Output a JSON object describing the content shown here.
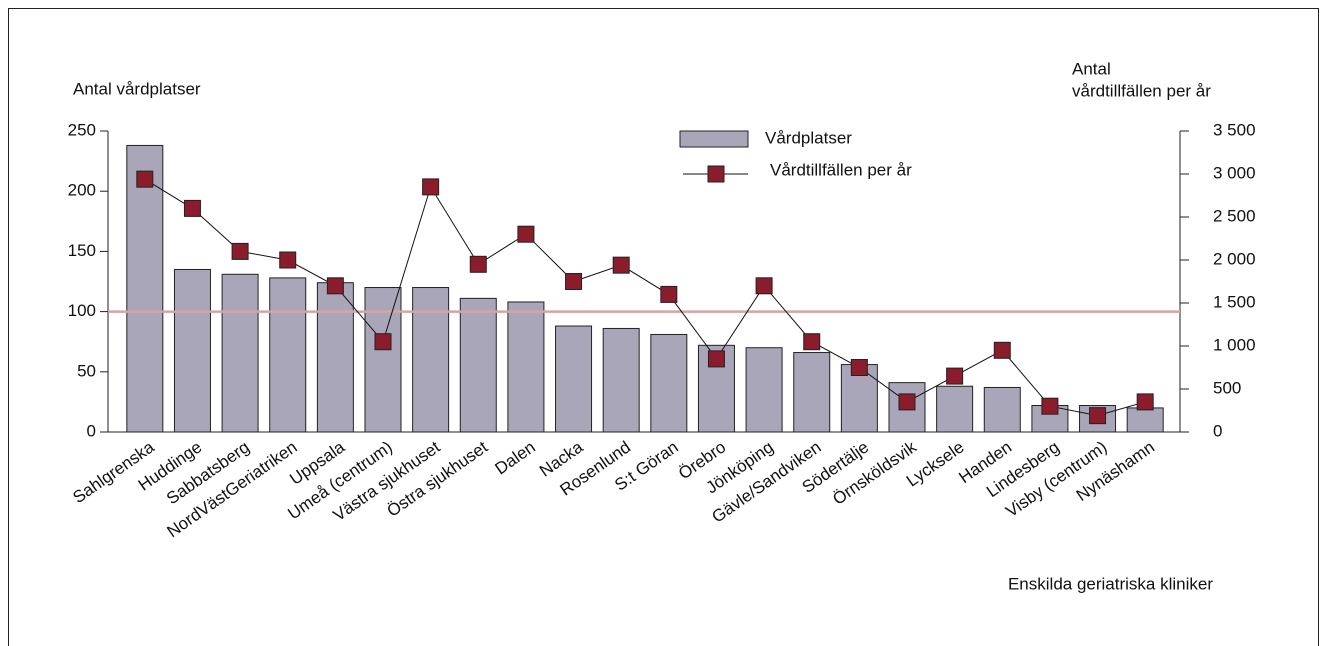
{
  "chart_data": {
    "type": "bar_line",
    "y_label": "Antal vårdplatser",
    "y2_label": [
      "Antal",
      "vårdtillfällen per år"
    ],
    "x_label": "Enskilda geriatriska kliniker",
    "categories": [
      "Sahlgrenska",
      "Huddinge",
      "Sabbatsberg",
      "NordVästGeriatriken",
      "Uppsala",
      "Umeå (centrum)",
      "Västra sjukhuset",
      "Östra sjukhuset",
      "Dalen",
      "Nacka",
      "Rosenlund",
      "S:t Göran",
      "Örebro",
      "Jönköping",
      "Gävle/Sandviken",
      "Södertälje",
      "Örnsköldsvik",
      "Lycksele",
      "Handen",
      "Lindesberg",
      "Visby (centrum)",
      "Nynäshamn"
    ],
    "series": [
      {
        "name": "Vårdplatser",
        "type": "bar",
        "color": "#aaa6b9",
        "values": [
          238,
          135,
          131,
          128,
          124,
          120,
          120,
          111,
          108,
          88,
          86,
          81,
          72,
          70,
          66,
          56,
          41,
          38,
          37,
          22,
          22,
          20
        ]
      },
      {
        "name": "Vårdtillfällen per år",
        "type": "line",
        "axis": "y2",
        "color": "#8b1c2b",
        "values": [
          2940,
          2600,
          2100,
          2000,
          1700,
          1050,
          2850,
          1950,
          2300,
          1750,
          1940,
          1600,
          850,
          1700,
          1050,
          750,
          350,
          650,
          950,
          300,
          190,
          350
        ]
      }
    ],
    "ylim": [
      0,
      250
    ],
    "yticks": [
      0,
      50,
      100,
      150,
      200,
      250
    ],
    "y2lim": [
      0,
      3500
    ],
    "y2ticks": [
      0,
      500,
      {
        "value": 1000,
        "label": "1 000"
      },
      {
        "value": 1500,
        "label": "1 500"
      },
      {
        "value": 2000,
        "label": "2 000"
      },
      {
        "value": 2500,
        "label": "2 500"
      },
      {
        "value": 3000,
        "label": "3 000"
      },
      {
        "value": 3500,
        "label": "3 500"
      }
    ],
    "reference_line": {
      "value": 100,
      "color": "#d9a3a3"
    },
    "legend": "top-center"
  }
}
